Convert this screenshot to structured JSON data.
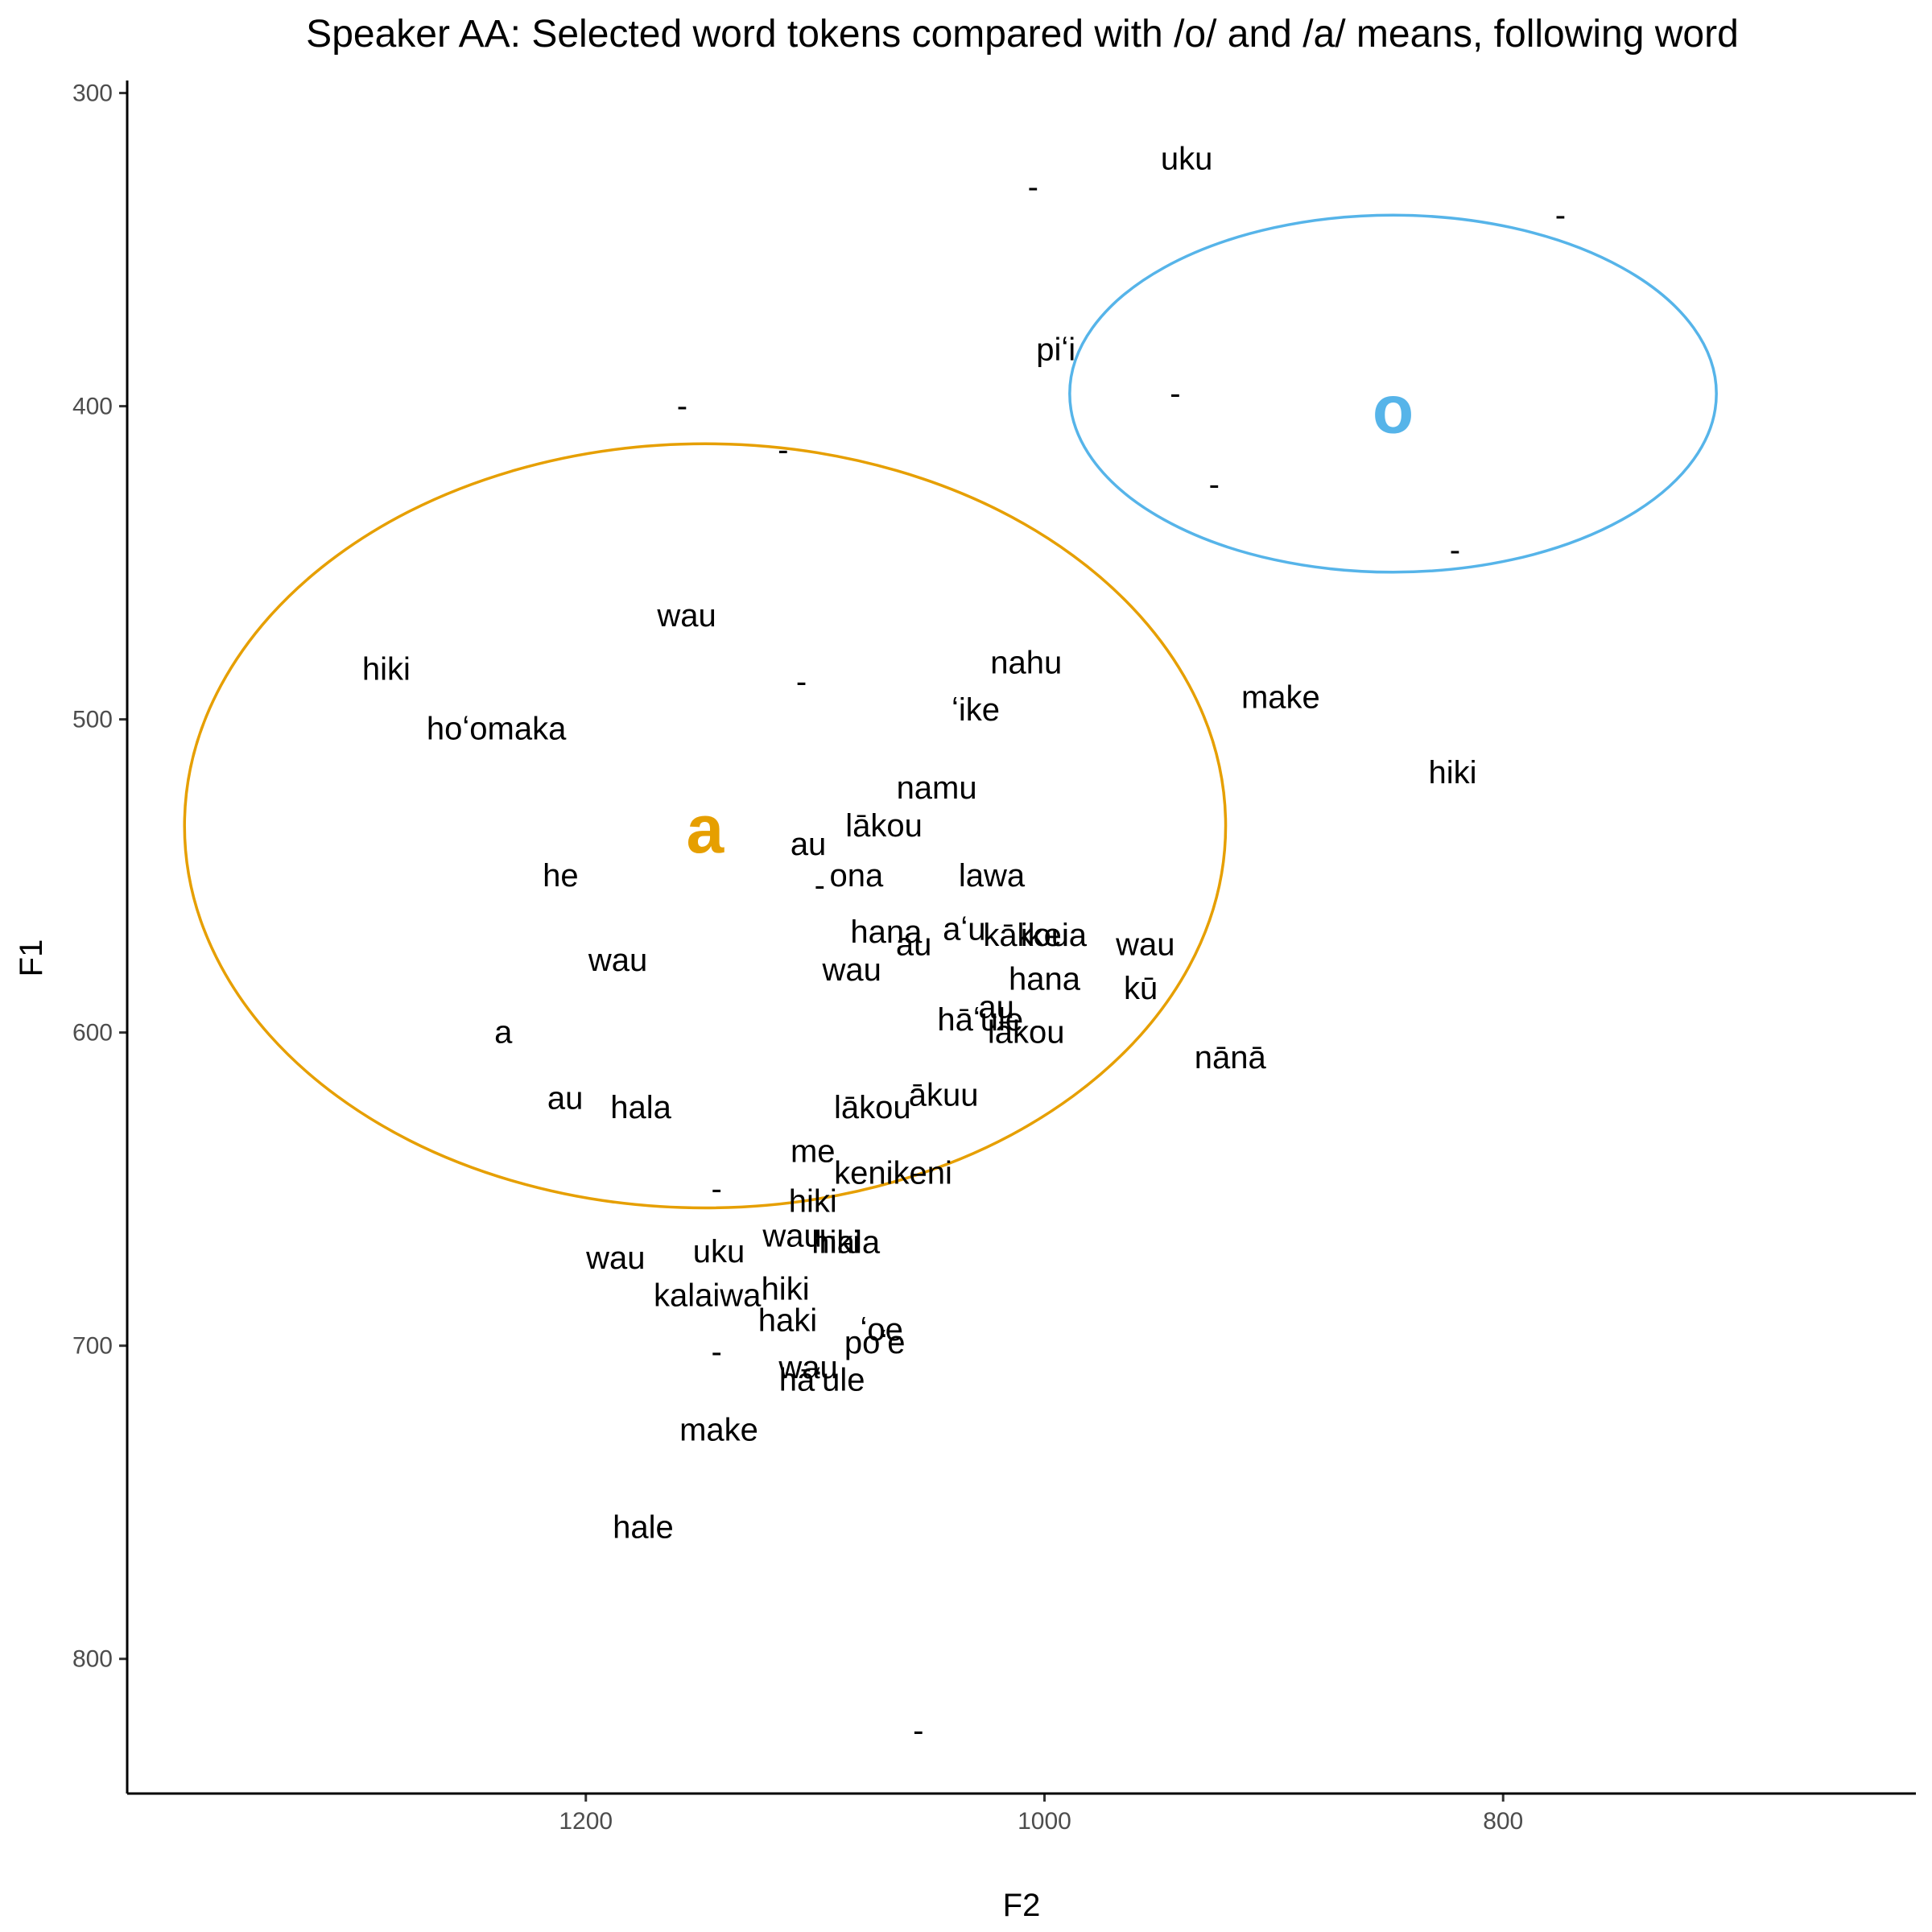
{
  "chart_data": {
    "type": "scatter",
    "title": "Speaker AA: Selected word tokens compared with /o/ and /a/ means, following word",
    "xlabel": "F2",
    "ylabel": "F1",
    "x_reversed": true,
    "y_reversed": true,
    "xlim": [
      1400,
      620
    ],
    "ylim": [
      296,
      843
    ],
    "xticks": [
      1200,
      1000,
      800
    ],
    "yticks": [
      300,
      400,
      500,
      600,
      700,
      800
    ],
    "grid": false,
    "colors": {
      "a": "#E69F00",
      "o": "#56B4E9",
      "text": "#000000"
    },
    "vowel_means": [
      {
        "label": "a",
        "f2": 1148,
        "f1": 535
      },
      {
        "label": "o",
        "f2": 848,
        "f1": 401
      }
    ],
    "ellipses": [
      {
        "vowel": "a",
        "f2_center": 1148,
        "f1_center": 534,
        "f2_half_width": 227,
        "f1_half_height": 122
      },
      {
        "vowel": "o",
        "f2_center": 848,
        "f1_center": 396,
        "f2_half_width": 141,
        "f1_half_height": 57
      }
    ],
    "tokens": [
      {
        "word": "uku",
        "f2": 938,
        "f1": 321
      },
      {
        "word": "-",
        "f2": 1005,
        "f1": 330
      },
      {
        "word": "-",
        "f2": 775,
        "f1": 339
      },
      {
        "word": "piʻi",
        "f2": 995,
        "f1": 382
      },
      {
        "word": "-",
        "f2": 1158,
        "f1": 400
      },
      {
        "word": "-",
        "f2": 943,
        "f1": 396
      },
      {
        "word": "-",
        "f2": 1114,
        "f1": 414
      },
      {
        "word": "-",
        "f2": 926,
        "f1": 425
      },
      {
        "word": "-",
        "f2": 821,
        "f1": 446
      },
      {
        "word": "wau",
        "f2": 1156,
        "f1": 467
      },
      {
        "word": "hiki",
        "f2": 1287,
        "f1": 484
      },
      {
        "word": "nahu",
        "f2": 1008,
        "f1": 482
      },
      {
        "word": "-",
        "f2": 1106,
        "f1": 488
      },
      {
        "word": "ʻike",
        "f2": 1030,
        "f1": 497
      },
      {
        "word": "make",
        "f2": 897,
        "f1": 493
      },
      {
        "word": "hoʻomaka",
        "f2": 1239,
        "f1": 503
      },
      {
        "word": "hiki",
        "f2": 822,
        "f1": 517
      },
      {
        "word": "namu",
        "f2": 1047,
        "f1": 522
      },
      {
        "word": "lākou",
        "f2": 1070,
        "f1": 534
      },
      {
        "word": "au",
        "f2": 1103,
        "f1": 540
      },
      {
        "word": "ona",
        "f2": 1082,
        "f1": 550
      },
      {
        "word": "he",
        "f2": 1211,
        "f1": 550
      },
      {
        "word": "lawa",
        "f2": 1023,
        "f1": 550
      },
      {
        "word": "-",
        "f2": 1098,
        "f1": 553
      },
      {
        "word": "hana",
        "f2": 1069,
        "f1": 568
      },
      {
        "word": "aʻu",
        "f2": 1035,
        "f1": 567
      },
      {
        "word": "kākou",
        "f2": 1008,
        "f1": 569
      },
      {
        "word": "ikeia",
        "f2": 996,
        "f1": 569
      },
      {
        "word": "au",
        "f2": 1057,
        "f1": 572
      },
      {
        "word": "wau",
        "f2": 956,
        "f1": 572
      },
      {
        "word": "wau",
        "f2": 1186,
        "f1": 577
      },
      {
        "word": "wau",
        "f2": 1084,
        "f1": 580
      },
      {
        "word": "hana",
        "f2": 1000,
        "f1": 583
      },
      {
        "word": "kū",
        "f2": 958,
        "f1": 586
      },
      {
        "word": "au",
        "f2": 1021,
        "f1": 592
      },
      {
        "word": "hāʻule",
        "f2": 1028,
        "f1": 596
      },
      {
        "word": "lākou",
        "f2": 1008,
        "f1": 600
      },
      {
        "word": "a",
        "f2": 1236,
        "f1": 600
      },
      {
        "word": "nānā",
        "f2": 919,
        "f1": 608
      },
      {
        "word": "au",
        "f2": 1209,
        "f1": 621
      },
      {
        "word": "ākuu",
        "f2": 1044,
        "f1": 620
      },
      {
        "word": "hala",
        "f2": 1176,
        "f1": 624
      },
      {
        "word": "lākou",
        "f2": 1075,
        "f1": 624
      },
      {
        "word": "me",
        "f2": 1101,
        "f1": 638
      },
      {
        "word": "kenikeni",
        "f2": 1066,
        "f1": 645
      },
      {
        "word": "hiki",
        "f2": 1101,
        "f1": 654
      },
      {
        "word": "-",
        "f2": 1143,
        "f1": 650
      },
      {
        "word": "wau",
        "f2": 1110,
        "f1": 665
      },
      {
        "word": "hiki",
        "f2": 1091,
        "f1": 667
      },
      {
        "word": "hala",
        "f2": 1085,
        "f1": 667
      },
      {
        "word": "wau",
        "f2": 1187,
        "f1": 672
      },
      {
        "word": "uku",
        "f2": 1142,
        "f1": 670
      },
      {
        "word": "hiki",
        "f2": 1113,
        "f1": 682
      },
      {
        "word": "kalaiwa",
        "f2": 1147,
        "f1": 684
      },
      {
        "word": "haki",
        "f2": 1112,
        "f1": 692
      },
      {
        "word": "ʻoe",
        "f2": 1071,
        "f1": 695
      },
      {
        "word": "poʻe",
        "f2": 1074,
        "f1": 699
      },
      {
        "word": "wau",
        "f2": 1103,
        "f1": 707
      },
      {
        "word": "-",
        "f2": 1143,
        "f1": 702
      },
      {
        "word": "hāʻule",
        "f2": 1097,
        "f1": 711
      },
      {
        "word": "make",
        "f2": 1142,
        "f1": 727
      },
      {
        "word": "hale",
        "f2": 1175,
        "f1": 758
      },
      {
        "word": "-",
        "f2": 1055,
        "f1": 823
      }
    ]
  }
}
